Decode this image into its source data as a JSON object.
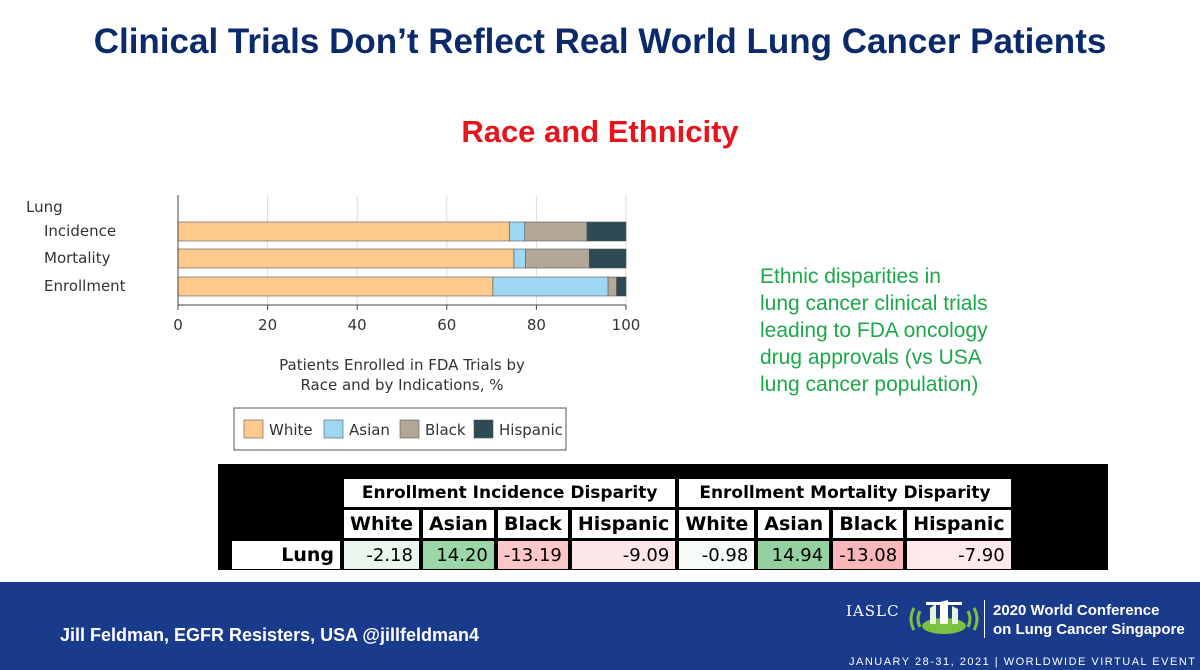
{
  "slide": {
    "title": "Clinical Trials Don’t Reflect Real World Lung Cancer Patients",
    "subtitle": "Race and Ethnicity"
  },
  "chart_data": {
    "type": "bar",
    "orientation": "horizontal",
    "stacked": true,
    "group_label": "Lung",
    "categories": [
      "Incidence",
      "Mortality",
      "Enrollment"
    ],
    "series": [
      {
        "name": "White",
        "color": "#fdca8c",
        "values": [
          74.0,
          75.0,
          70.3
        ]
      },
      {
        "name": "Asian",
        "color": "#9ed8f5",
        "values": [
          3.4,
          2.6,
          25.7
        ]
      },
      {
        "name": "Black",
        "color": "#b3a898",
        "values": [
          13.9,
          14.2,
          1.9
        ]
      },
      {
        "name": "Hispanic",
        "color": "#2e4a55",
        "values": [
          8.7,
          8.2,
          2.1
        ]
      }
    ],
    "x_ticks": [
      "0",
      "20",
      "40",
      "60",
      "80",
      "100"
    ],
    "xlim": [
      0,
      100
    ],
    "xlabel": [
      "Patients Enrolled in FDA Trials by",
      "Race and by Indications, %"
    ],
    "legend_position": "bottom"
  },
  "note_lines": [
    "Ethnic disparities in",
    "lung cancer clinical trials",
    "leading to FDA oncology",
    "drug approvals (vs USA",
    "lung cancer population)"
  ],
  "disparity_table": {
    "groups": [
      "Enrollment Incidence Disparity",
      "Enrollment Mortality Disparity"
    ],
    "headers": [
      "White",
      "Asian",
      "Black",
      "Hispanic",
      "White",
      "Asian",
      "Black",
      "Hispanic"
    ],
    "row_label": "Lung",
    "values": [
      "-2.18",
      "14.20",
      "-13.19",
      "-9.09",
      "-0.98",
      "14.94",
      "-13.08",
      "-7.90"
    ],
    "cell_colors": [
      "#e9f6ee",
      "#9bd6a6",
      "#fbc7c9",
      "#fde6e8",
      "#f7fbf8",
      "#93d19f",
      "#f9b7ba",
      "#fde9eb"
    ]
  },
  "footer": {
    "author": "Jill Feldman, EGFR Resisters, USA  @jillfeldman4",
    "logo_org": "IASLC",
    "conference_line1": "2020 World Conference",
    "conference_line2": "on Lung Cancer Singapore",
    "dates": "JANUARY 28-31, 2021 | WORLDWIDE VIRTUAL EVENT",
    "background_color": "#1a3a8c"
  }
}
